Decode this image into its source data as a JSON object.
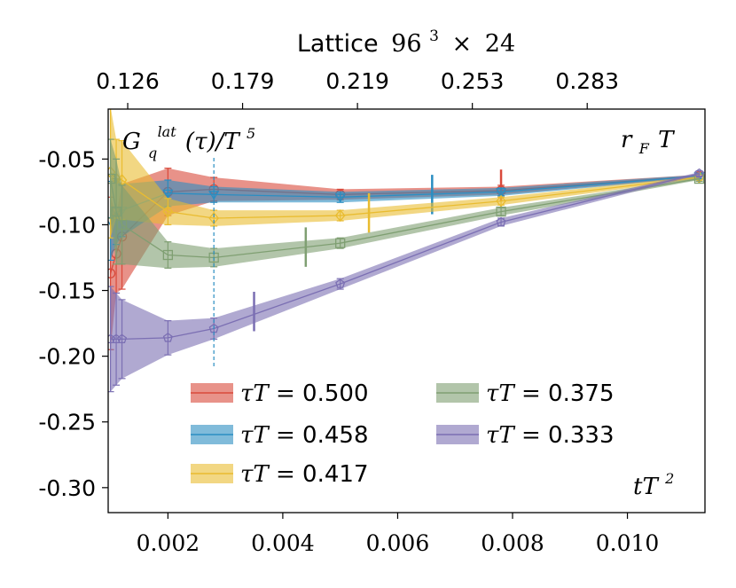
{
  "chart_data": {
    "type": "line",
    "title": "Lattice 96^3 × 24",
    "title_prefix": "Lattice",
    "title_lattice": "96",
    "title_exp": "3",
    "title_times": "×",
    "title_nt": "24",
    "ylabel": "G_q^lat(τ)/T^5",
    "ylabel_G": "G",
    "ylabel_sub": "q",
    "ylabel_sup": "lat",
    "ylabel_tau": "(τ)/T",
    "ylabel_exp": "5",
    "xlabel": "tT^2",
    "xlabel_base": "tT",
    "xlabel_exp": "2",
    "annotation_rf": "r_F T",
    "annotation_rf_r": "r",
    "annotation_rf_sub": "F",
    "annotation_rf_T": "T",
    "xlim": [
      0.00096,
      0.01135
    ],
    "ylim": [
      -0.319,
      -0.012
    ],
    "x_ticks": [
      0.002,
      0.004,
      0.006,
      0.008,
      0.01
    ],
    "x_tick_labels": [
      "0.002",
      "0.004",
      "0.006",
      "0.008",
      "0.010"
    ],
    "y_ticks": [
      -0.05,
      -0.1,
      -0.15,
      -0.2,
      -0.25,
      -0.3
    ],
    "y_tick_labels": [
      "-0.05",
      "-0.10",
      "-0.15",
      "-0.20",
      "-0.25",
      "-0.30"
    ],
    "top_ticks": [
      0.0013,
      0.0033,
      0.0053,
      0.0073,
      0.0093
    ],
    "top_tick_labels": [
      "0.126",
      "0.179",
      "0.219",
      "0.253",
      "0.283"
    ],
    "vline_x": 0.0028,
    "vline_ymin": -0.208,
    "legend_position": "lower-center",
    "series": [
      {
        "name": "τT = 0.500",
        "value_label": "0.500",
        "color": "#d9493b",
        "marker": "circle",
        "x": [
          0.001,
          0.0011,
          0.0012,
          0.002,
          0.0028,
          0.005,
          0.0078,
          0.01125
        ],
        "y": [
          -0.137,
          -0.122,
          -0.109,
          -0.075,
          -0.073,
          -0.077,
          -0.074,
          -0.063
        ],
        "err": [
          0.058,
          0.03,
          0.04,
          0.018,
          0.009,
          0.004,
          0.004,
          0.002
        ],
        "marker_err": [
          0,
          0.0,
          0.0,
          0.006,
          0.004,
          0.003,
          0.003,
          0.002
        ],
        "band_lo": [
          -0.195,
          -0.152,
          -0.149,
          -0.093,
          -0.082,
          -0.081,
          -0.077,
          -0.064
        ],
        "band_hi": [
          -0.079,
          -0.092,
          -0.069,
          -0.057,
          -0.064,
          -0.073,
          -0.071,
          -0.062
        ],
        "rf_x": 0.0078,
        "rf_y": -0.07,
        "rf_half": 0.012
      },
      {
        "name": "τT = 0.458",
        "value_label": "0.458",
        "color": "#2b8ec2",
        "marker": "triangle-down",
        "x": [
          0.001,
          0.0011,
          0.0012,
          0.002,
          0.0028,
          0.005,
          0.0078,
          0.01125
        ],
        "y": [
          -0.097,
          -0.09,
          -0.089,
          -0.076,
          -0.077,
          -0.079,
          -0.075,
          -0.063
        ],
        "err": [
          0.03,
          0.025,
          0.02,
          0.01,
          0.006,
          0.004,
          0.003,
          0.002
        ],
        "marker_err": [
          0,
          0,
          0,
          0.005,
          0.004,
          0.003,
          0.002,
          0.002
        ],
        "band_lo": [
          -0.127,
          -0.115,
          -0.109,
          -0.086,
          -0.083,
          -0.083,
          -0.078,
          -0.064
        ],
        "band_hi": [
          -0.067,
          -0.065,
          -0.069,
          -0.066,
          -0.071,
          -0.075,
          -0.072,
          -0.062
        ],
        "rf_x": 0.0066,
        "rf_y": -0.077,
        "rf_half": 0.015
      },
      {
        "name": "τT = 0.417",
        "value_label": "0.417",
        "color": "#e9bc30",
        "marker": "diamond",
        "x": [
          0.001,
          0.0011,
          0.0012,
          0.002,
          0.0028,
          0.005,
          0.0078,
          0.01125
        ],
        "y": [
          -0.06,
          -0.065,
          -0.066,
          -0.09,
          -0.095,
          -0.093,
          -0.082,
          -0.064
        ],
        "err": [
          0.05,
          0.03,
          0.03,
          0.01,
          0.006,
          0.004,
          0.003,
          0.002
        ],
        "marker_err": [
          0,
          0,
          0,
          0.006,
          0.004,
          0.003,
          0.003,
          0.002
        ],
        "band_lo": [
          -0.11,
          -0.095,
          -0.096,
          -0.1,
          -0.101,
          -0.097,
          -0.085,
          -0.065
        ],
        "band_hi": [
          -0.01,
          -0.035,
          -0.036,
          -0.08,
          -0.089,
          -0.089,
          -0.079,
          -0.063
        ],
        "rf_x": 0.0055,
        "rf_y": -0.091,
        "rf_half": 0.015
      },
      {
        "name": "τT = 0.375",
        "value_label": "0.375",
        "color": "#7f9f72",
        "marker": "square",
        "x": [
          0.001,
          0.0011,
          0.0012,
          0.002,
          0.0028,
          0.005,
          0.0078,
          0.01125
        ],
        "y": [
          -0.065,
          -0.09,
          -0.1,
          -0.123,
          -0.125,
          -0.114,
          -0.09,
          -0.065
        ],
        "err": [
          0.03,
          0.04,
          0.03,
          0.01,
          0.007,
          0.004,
          0.003,
          0.002
        ],
        "marker_err": [
          0,
          0,
          0,
          0.006,
          0.004,
          0.003,
          0.003,
          0.002
        ],
        "band_lo": [
          -0.095,
          -0.13,
          -0.13,
          -0.133,
          -0.132,
          -0.118,
          -0.093,
          -0.066
        ],
        "band_hi": [
          -0.035,
          -0.05,
          -0.07,
          -0.113,
          -0.118,
          -0.11,
          -0.087,
          -0.064
        ],
        "rf_x": 0.0044,
        "rf_y": -0.117,
        "rf_half": 0.015
      },
      {
        "name": "τT = 0.333",
        "value_label": "0.333",
        "color": "#7b6fb3",
        "marker": "pentagon",
        "x": [
          0.001,
          0.0011,
          0.0012,
          0.002,
          0.0028,
          0.005,
          0.0078,
          0.01125
        ],
        "y": [
          -0.187,
          -0.187,
          -0.187,
          -0.186,
          -0.179,
          -0.145,
          -0.098,
          -0.061
        ],
        "err": [
          0.04,
          0.035,
          0.03,
          0.013,
          0.008,
          0.004,
          0.003,
          0.002
        ],
        "marker_err": [
          0.04,
          0.035,
          0.03,
          0.013,
          0.008,
          0.003,
          0.003,
          0.002
        ],
        "band_lo": [
          -0.227,
          -0.222,
          -0.217,
          -0.199,
          -0.187,
          -0.149,
          -0.101,
          -0.062
        ],
        "band_hi": [
          -0.147,
          -0.152,
          -0.157,
          -0.173,
          -0.171,
          -0.141,
          -0.095,
          -0.06
        ],
        "rf_x": 0.0035,
        "rf_y": -0.166,
        "rf_half": 0.015
      }
    ],
    "legend_prefix": "τT = "
  }
}
